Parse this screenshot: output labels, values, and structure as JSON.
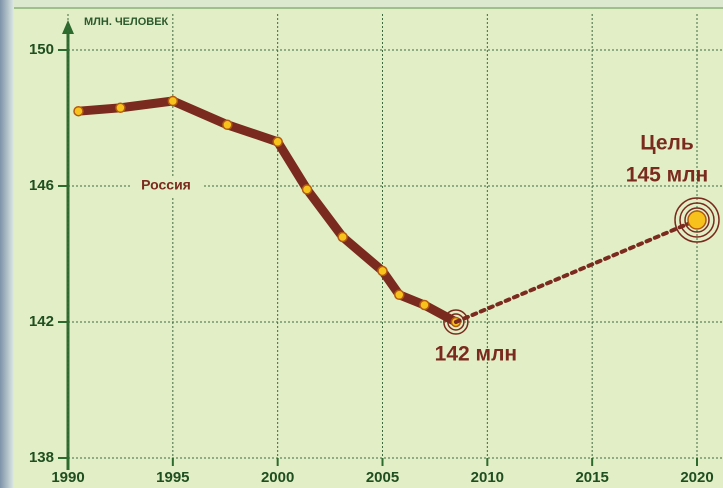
{
  "chart_data": {
    "type": "line",
    "y_label": "МЛН. ЧЕЛОВЕК",
    "annotation": "Цель",
    "xlim": [
      1990,
      2020
    ],
    "xticks": [
      1990,
      1995,
      2000,
      2005,
      2010,
      2015,
      2020
    ],
    "ylim": [
      138,
      150
    ],
    "yticks": [
      138,
      142,
      146,
      150
    ],
    "grid": true,
    "series": [
      {
        "name": "Россия",
        "color": "#7a2a1e",
        "style": "solid",
        "x": [
          1990.5,
          1992.5,
          1995,
          1997.6,
          2000,
          2001.4,
          2003.1,
          2005,
          2005.8,
          2007,
          2008.5
        ],
        "values": [
          148.2,
          148.3,
          148.5,
          147.8,
          147.3,
          145.9,
          144.5,
          143.5,
          142.8,
          142.5,
          142
        ],
        "value_labels": [
          null,
          null,
          null,
          null,
          null,
          null,
          null,
          null,
          null,
          null,
          "142 млн"
        ]
      },
      {
        "color": "#7a2a1e",
        "style": "dashed",
        "x": [
          2008.5,
          2020
        ],
        "values": [
          142,
          145
        ],
        "value_labels": [
          null,
          "145 млн"
        ]
      }
    ]
  }
}
